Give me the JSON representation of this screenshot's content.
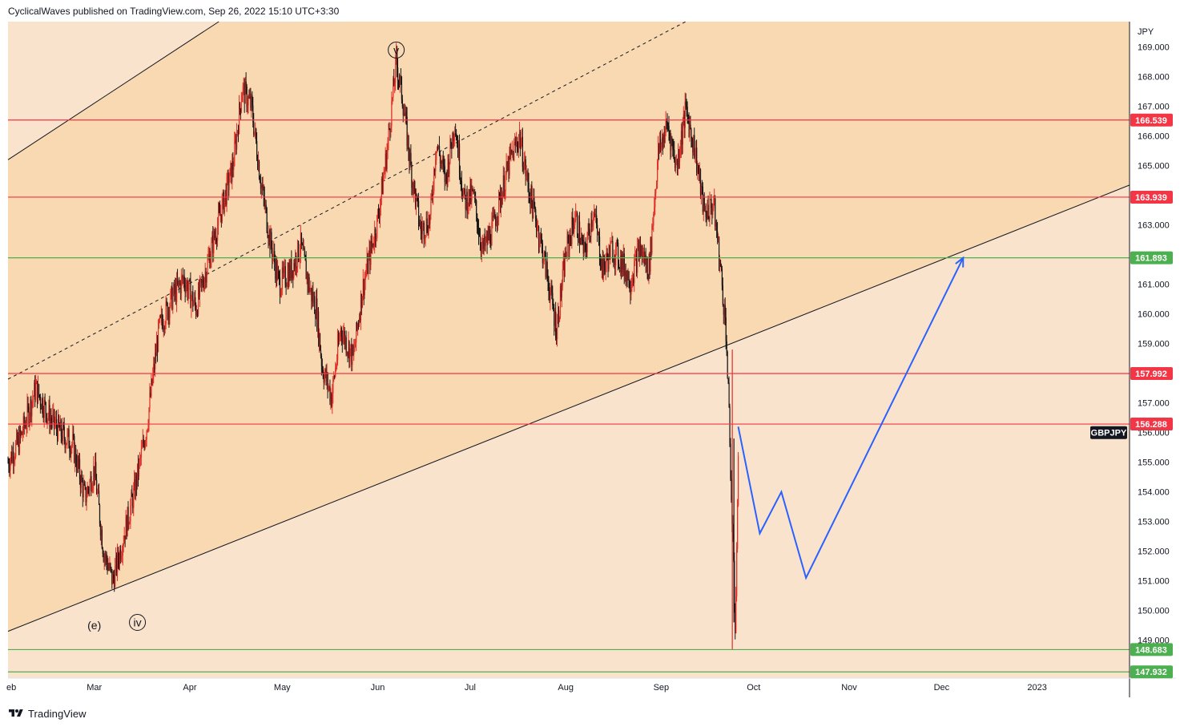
{
  "header": {
    "text": "CyclicalWaves published on TradingView.com, Sep 26, 2022 15:10 UTC+3:30"
  },
  "footer": {
    "brand": "TradingView"
  },
  "chart_data": {
    "type": "line",
    "symbol": "GBPJPY",
    "currency": "JPY",
    "x_ticks": [
      "eb",
      "Mar",
      "Apr",
      "May",
      "Jun",
      "Jul",
      "Aug",
      "Sep",
      "Oct",
      "Nov",
      "Dec",
      "2023"
    ],
    "y_ticks": [
      149,
      150,
      151,
      152,
      153,
      154,
      155,
      156,
      157,
      158,
      159,
      160,
      161,
      162,
      163,
      164,
      165,
      166,
      167,
      168,
      169
    ],
    "ylim": [
      147.0,
      169.6
    ],
    "series": [
      {
        "name": "GBPJPY",
        "color": "#e0302a",
        "x": [
          "2022-02-01",
          "2022-02-05",
          "2022-02-10",
          "2022-02-14",
          "2022-02-18",
          "2022-02-22",
          "2022-02-26",
          "2022-03-01",
          "2022-03-04",
          "2022-03-07",
          "2022-03-10",
          "2022-03-14",
          "2022-03-18",
          "2022-03-22",
          "2022-03-26",
          "2022-03-30",
          "2022-04-03",
          "2022-04-07",
          "2022-04-11",
          "2022-04-15",
          "2022-04-18",
          "2022-04-21",
          "2022-04-24",
          "2022-04-27",
          "2022-04-30",
          "2022-05-04",
          "2022-05-07",
          "2022-05-10",
          "2022-05-12",
          "2022-05-14",
          "2022-05-17",
          "2022-05-20",
          "2022-05-24",
          "2022-05-27",
          "2022-06-01",
          "2022-06-04",
          "2022-06-07",
          "2022-06-09",
          "2022-06-12",
          "2022-06-15",
          "2022-06-18",
          "2022-06-20",
          "2022-06-23",
          "2022-06-26",
          "2022-06-29",
          "2022-07-02",
          "2022-07-05",
          "2022-07-08",
          "2022-07-11",
          "2022-07-14",
          "2022-07-17",
          "2022-07-20",
          "2022-07-23",
          "2022-07-26",
          "2022-07-29",
          "2022-08-01",
          "2022-08-04",
          "2022-08-07",
          "2022-08-10",
          "2022-08-13",
          "2022-08-16",
          "2022-08-19",
          "2022-08-22",
          "2022-08-25",
          "2022-08-28",
          "2022-08-31",
          "2022-09-03",
          "2022-09-06",
          "2022-09-09",
          "2022-09-12",
          "2022-09-15",
          "2022-09-18",
          "2022-09-20",
          "2022-09-22",
          "2022-09-23",
          "2022-09-25",
          "2022-09-26"
        ],
        "values": [
          155.0,
          155.8,
          157.5,
          156.6,
          156.0,
          155.6,
          153.8,
          154.8,
          152.0,
          151.0,
          152.3,
          154.0,
          156.2,
          159.5,
          160.5,
          161.2,
          160.2,
          161.8,
          163.4,
          165.0,
          167.6,
          167.0,
          164.5,
          162.5,
          161.0,
          161.5,
          162.3,
          160.8,
          160.2,
          158.2,
          157.2,
          159.5,
          158.5,
          160.8,
          163.2,
          165.5,
          168.5,
          167.3,
          164.7,
          162.8,
          163.2,
          165.8,
          164.5,
          166.5,
          163.8,
          164.0,
          162.1,
          162.8,
          164.0,
          165.2,
          166.0,
          164.2,
          162.9,
          161.3,
          159.5,
          162.0,
          163.3,
          162.0,
          163.5,
          161.5,
          162.2,
          161.8,
          161.1,
          162.2,
          161.5,
          165.4,
          166.4,
          165.0,
          166.9,
          165.5,
          163.4,
          163.7,
          161.8,
          159.5,
          156.5,
          149.5,
          154.8
        ],
        "extremes": {
          "high": 168.6,
          "low": 148.68
        }
      }
    ],
    "forecast_path": {
      "color": "#2962ff",
      "points": [
        {
          "x": "2022-09-26",
          "y": 156.2
        },
        {
          "x": "2022-10-03",
          "y": 152.6
        },
        {
          "x": "2022-10-10",
          "y": 154.0
        },
        {
          "x": "2022-10-18",
          "y": 151.1
        },
        {
          "x": "2022-12-08",
          "y": 161.893
        }
      ]
    },
    "price_levels": [
      {
        "value": 166.539,
        "label": "166.539",
        "color": "#f23645"
      },
      {
        "value": 163.939,
        "label": "163.939",
        "color": "#f23645"
      },
      {
        "value": 161.893,
        "label": "161.893",
        "color": "#4caf50"
      },
      {
        "value": 157.992,
        "label": "157.992",
        "color": "#f23645"
      },
      {
        "value": 156.288,
        "label": "156.288",
        "color": "#f23645"
      },
      {
        "value": 148.683,
        "label": "148.683",
        "color": "#4caf50"
      },
      {
        "value": 147.932,
        "label": "147.932",
        "color": "#4caf50"
      }
    ],
    "channel": {
      "upper_line": [
        {
          "x": "2022-02-01",
          "y": 165.2
        },
        {
          "x": "2022-06-25",
          "y": 175.0
        }
      ],
      "mid_line": [
        {
          "x": "2022-02-01",
          "y": 157.8
        },
        {
          "x": "2022-12-30",
          "y": 176.0
        }
      ],
      "lower_line": [
        {
          "x": "2022-02-01",
          "y": 149.3
        },
        {
          "x": "2023-02-11",
          "y": 164.8
        }
      ]
    },
    "wave_labels": [
      {
        "text": "v",
        "circled": true,
        "x": "2022-06-07",
        "y": 168.9
      },
      {
        "text": "iv",
        "circled": true,
        "x": "2022-03-15",
        "y": 149.6
      },
      {
        "text": "(e)",
        "circled": false,
        "x": "2022-03-01",
        "y": 149.5
      }
    ],
    "colors": {
      "bg_light": "#fae3cc",
      "bg_dark": "#f9d9b2",
      "candle_up": "#e0302a",
      "candle_down": "#161616",
      "symbol_tag_bg": "#131722"
    }
  }
}
